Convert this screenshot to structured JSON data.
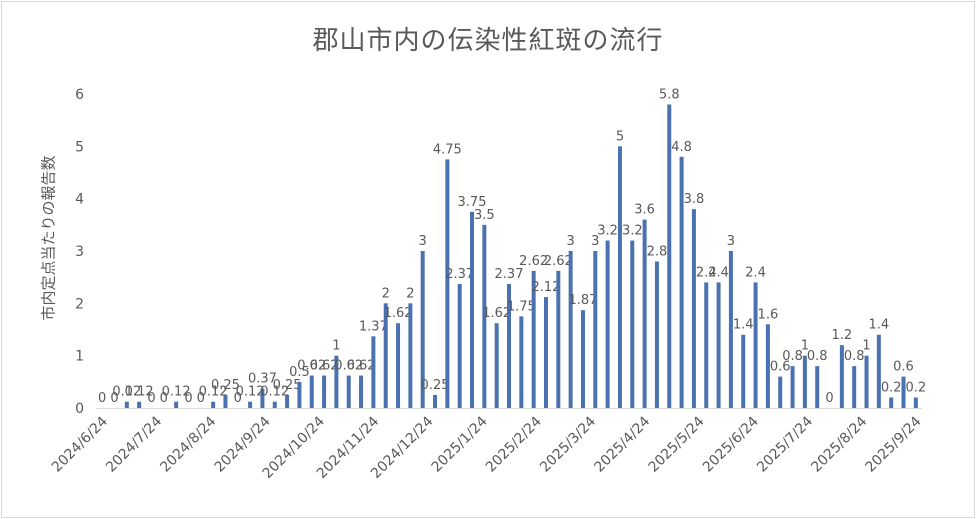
{
  "chart_data": {
    "type": "bar",
    "title": "郡山市内の伝染性紅斑の流行",
    "ylabel": "市内定点当たりの報告数",
    "xlabel": "",
    "ylim": [
      0,
      6
    ],
    "yticks": [
      0,
      1,
      2,
      3,
      4,
      5,
      6
    ],
    "grid": false,
    "legend": "none",
    "bar_color": "#4a72b0",
    "x_tick_labels": [
      "2024/6/24",
      "2024/7/24",
      "2024/8/24",
      "2024/9/24",
      "2024/10/24",
      "2024/11/24",
      "2024/12/24",
      "2025/1/24",
      "2025/2/24",
      "2025/3/24",
      "2025/4/24",
      "2025/5/24",
      "2025/6/24",
      "2025/7/24",
      "2025/8/24",
      "2025/9/24"
    ],
    "values": [
      0,
      0,
      0.12,
      0.12,
      0,
      0,
      0.12,
      0,
      0,
      0.12,
      0.25,
      0,
      0.12,
      0.37,
      0.12,
      0.25,
      0.5,
      0.62,
      0.62,
      1,
      0.62,
      0.62,
      1.37,
      2,
      1.62,
      2,
      3,
      0.25,
      4.75,
      2.37,
      3.75,
      3.5,
      1.62,
      2.37,
      1.75,
      2.62,
      2.12,
      2.62,
      3,
      1.87,
      3,
      3.2,
      5,
      3.2,
      3.6,
      2.8,
      5.8,
      4.8,
      3.8,
      2.4,
      2.4,
      3,
      1.4,
      2.4,
      1.6,
      0.6,
      0.8,
      1,
      0.8,
      0,
      1.2,
      0.8,
      1,
      1.4,
      0.2,
      0.6,
      0.2
    ],
    "data_labels": [
      "0",
      "0",
      "0.12",
      "0.12",
      "0",
      "0",
      "0.12",
      "0",
      "0",
      "0.12",
      "0.25",
      "0",
      "0.12",
      "0.37",
      "0.12",
      "0.25",
      "0.5",
      "0.62",
      "0.62",
      "1",
      "0.62",
      "0.62",
      "1.37",
      "2",
      "1.62",
      "2",
      "3",
      "0.25",
      "4.75",
      "2.37",
      "3.75",
      "3.5",
      "1.62",
      "2.37",
      "1.75",
      "2.62",
      "2.12",
      "2.62",
      "3",
      "1.87",
      "3",
      "3.2",
      "5",
      "3.2",
      "3.6",
      "2.8",
      "5.8",
      "4.8",
      "3.8",
      "2.4",
      "2.4",
      "3",
      "1.4",
      "2.4",
      "1.6",
      "0.6",
      "0.8",
      "1",
      "0.8",
      "0",
      "1.2",
      "0.8",
      "1",
      "1.4",
      "0.2",
      "0.6",
      "0.2"
    ]
  }
}
